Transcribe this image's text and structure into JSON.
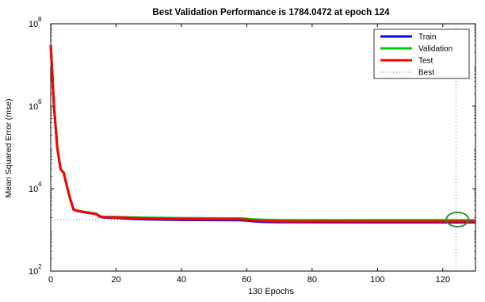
{
  "chart_data": {
    "type": "line",
    "title": "Best Validation Performance is 1784.0472 at epoch 124",
    "xlabel": "130 Epochs",
    "ylabel": "Mean Squared Error  (mse)",
    "xlim": [
      0,
      130
    ],
    "ylim": [
      100,
      100000000
    ],
    "yscale": "log",
    "grid": false,
    "legend_position": "top-right",
    "x_ticks": [
      0,
      20,
      40,
      60,
      80,
      100,
      120
    ],
    "y_ticks": [
      {
        "value": 100,
        "base": "10",
        "exp": "2"
      },
      {
        "value": 10000,
        "base": "10",
        "exp": "4"
      },
      {
        "value": 1000000,
        "base": "10",
        "exp": "6"
      },
      {
        "value": 100000000,
        "base": "10",
        "exp": "8"
      }
    ],
    "best": {
      "epoch": 124,
      "value": 1784.0472,
      "color": "#2e8b2e",
      "marker": "circle"
    },
    "series": [
      {
        "name": "Train",
        "color": "#0000ff",
        "points": [
          [
            0,
            30000000
          ],
          [
            1,
            1000000
          ],
          [
            2,
            100000
          ],
          [
            3,
            30000
          ],
          [
            4,
            24000
          ],
          [
            5,
            11000
          ],
          [
            6,
            5500
          ],
          [
            7,
            3100
          ],
          [
            8,
            2900
          ],
          [
            10,
            2700
          ],
          [
            12,
            2550
          ],
          [
            14,
            2400
          ],
          [
            15,
            2100
          ],
          [
            16,
            2000
          ],
          [
            20,
            1950
          ],
          [
            25,
            1850
          ],
          [
            30,
            1800
          ],
          [
            40,
            1750
          ],
          [
            50,
            1730
          ],
          [
            58,
            1720
          ],
          [
            60,
            1680
          ],
          [
            62,
            1620
          ],
          [
            65,
            1560
          ],
          [
            70,
            1540
          ],
          [
            80,
            1530
          ],
          [
            100,
            1520
          ],
          [
            124,
            1520
          ],
          [
            130,
            1520
          ]
        ]
      },
      {
        "name": "Validation",
        "color": "#00cc00",
        "points": [
          [
            0,
            30000000
          ],
          [
            1,
            1000000
          ],
          [
            2,
            100000
          ],
          [
            3,
            30000
          ],
          [
            4,
            24000
          ],
          [
            5,
            11000
          ],
          [
            6,
            5500
          ],
          [
            7,
            3100
          ],
          [
            8,
            2950
          ],
          [
            10,
            2750
          ],
          [
            12,
            2600
          ],
          [
            14,
            2450
          ],
          [
            15,
            2150
          ],
          [
            16,
            2080
          ],
          [
            20,
            2050
          ],
          [
            25,
            2000
          ],
          [
            30,
            1960
          ],
          [
            40,
            1930
          ],
          [
            50,
            1910
          ],
          [
            58,
            1900
          ],
          [
            60,
            1860
          ],
          [
            62,
            1800
          ],
          [
            65,
            1760
          ],
          [
            70,
            1730
          ],
          [
            80,
            1720
          ],
          [
            100,
            1720
          ],
          [
            124,
            1720
          ],
          [
            130,
            1720
          ]
        ]
      },
      {
        "name": "Test",
        "color": "#ff0000",
        "points": [
          [
            0,
            30000000
          ],
          [
            1,
            1000000
          ],
          [
            2,
            100000
          ],
          [
            3,
            30000
          ],
          [
            4,
            24000
          ],
          [
            5,
            11000
          ],
          [
            6,
            5500
          ],
          [
            7,
            3100
          ],
          [
            8,
            2920
          ],
          [
            10,
            2720
          ],
          [
            12,
            2570
          ],
          [
            14,
            2420
          ],
          [
            15,
            2120
          ],
          [
            16,
            2030
          ],
          [
            20,
            2000
          ],
          [
            25,
            1930
          ],
          [
            30,
            1880
          ],
          [
            40,
            1840
          ],
          [
            50,
            1810
          ],
          [
            58,
            1800
          ],
          [
            60,
            1760
          ],
          [
            62,
            1700
          ],
          [
            65,
            1640
          ],
          [
            70,
            1610
          ],
          [
            80,
            1600
          ],
          [
            100,
            1600
          ],
          [
            124,
            1600
          ],
          [
            130,
            1600
          ]
        ]
      }
    ],
    "legend": [
      {
        "label": "Train",
        "color": "#0000ff",
        "style": "solid"
      },
      {
        "label": "Validation",
        "color": "#00cc00",
        "style": "solid"
      },
      {
        "label": "Test",
        "color": "#ff0000",
        "style": "solid"
      },
      {
        "label": "Best",
        "color": "#2e8b2e",
        "style": "dotted"
      }
    ]
  }
}
